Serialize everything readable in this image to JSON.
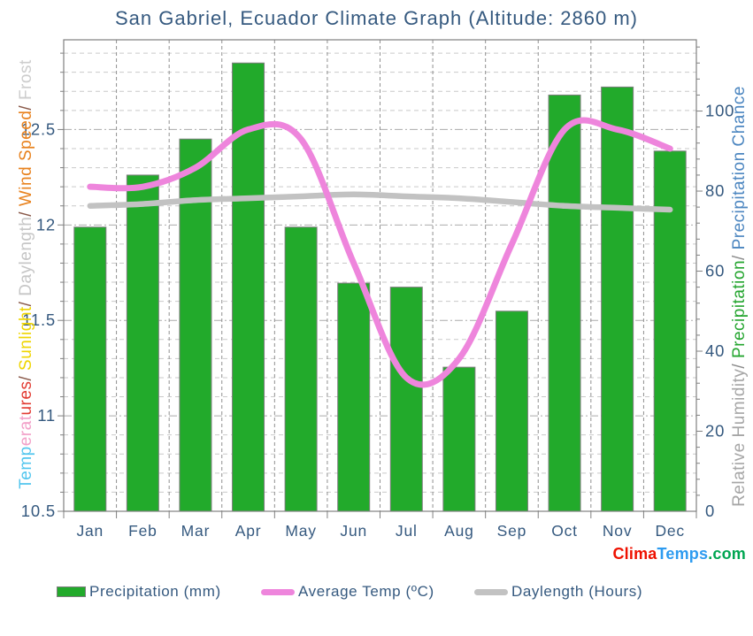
{
  "title": "San Gabriel, Ecuador Climate Graph (Altitude: 2860 m)",
  "logo": {
    "parts": [
      {
        "text": "Clima",
        "color": "#EE1100"
      },
      {
        "text": "Temps",
        "color": "#2D9BF0"
      },
      {
        "text": ".com",
        "color": "#00A651"
      }
    ]
  },
  "axis_titles": {
    "left": {
      "full_text": "Temperatures/ Sunlight/ Daylength/ Wind Speed/ Frost",
      "segments": [
        {
          "text": "Temp",
          "color": "#53C6EE"
        },
        {
          "text": "erat",
          "color": "#F2A0C8"
        },
        {
          "text": "ures",
          "color": "#E23B32"
        },
        {
          "text": "/ ",
          "color": "#8A5A4A"
        },
        {
          "text": "Sunlight",
          "color": "#EFD500"
        },
        {
          "text": "/ ",
          "color": "#8A5A4A"
        },
        {
          "text": "Daylength",
          "color": "#C6C6C6"
        },
        {
          "text": "/ ",
          "color": "#8A5A4A"
        },
        {
          "text": "Wind Speed",
          "color": "#E8821E"
        },
        {
          "text": "/ ",
          "color": "#8A5A4A"
        },
        {
          "text": "Frost",
          "color": "#CDCDCD"
        }
      ]
    },
    "right": {
      "full_text": "Relative Humidity/ Precipitation/ Precipitation Chance",
      "segments": [
        {
          "text": "Relative Humidity",
          "color": "#A6A6A6"
        },
        {
          "text": "/ ",
          "color": "#8C8C8C"
        },
        {
          "text": "Precipitation",
          "color": "#24A52F"
        },
        {
          "text": "/ ",
          "color": "#8C8C8C"
        },
        {
          "text": "Precipitation Chance",
          "color": "#4C86C0"
        }
      ]
    }
  },
  "legend": {
    "items": [
      {
        "label": "Precipitation (mm)",
        "swatch": "bar",
        "color": "#22AA2B"
      },
      {
        "label": "Average Temp (ºC)",
        "swatch": "line",
        "color": "#EE85DC"
      },
      {
        "label": "Daylength (Hours)",
        "swatch": "line",
        "color": "#C2C2C2"
      }
    ]
  },
  "chart_data": {
    "type": "bar",
    "title": "San Gabriel, Ecuador Climate Graph (Altitude: 2860 m)",
    "categories": [
      "Jan",
      "Feb",
      "Mar",
      "Apr",
      "May",
      "Jun",
      "Jul",
      "Aug",
      "Sep",
      "Oct",
      "Nov",
      "Dec"
    ],
    "series": [
      {
        "name": "Precipitation (mm)",
        "type": "bar",
        "axis": "right",
        "color": "#22AA2B",
        "values": [
          71,
          84,
          93,
          112,
          71,
          57,
          56,
          36,
          50,
          104,
          106,
          90
        ]
      },
      {
        "name": "Average Temp (ºC)",
        "type": "line",
        "axis": "left",
        "color": "#EE85DC",
        "values": [
          12.2,
          12.2,
          12.3,
          12.5,
          12.45,
          11.8,
          11.2,
          11.3,
          11.9,
          12.5,
          12.5,
          12.4
        ]
      },
      {
        "name": "Daylength (Hours)",
        "type": "line",
        "axis": "left",
        "color": "#C2C2C2",
        "values": [
          12.1,
          12.11,
          12.13,
          12.14,
          12.15,
          12.16,
          12.15,
          12.14,
          12.12,
          12.1,
          12.09,
          12.08
        ]
      }
    ],
    "left_axis": {
      "ticks": [
        10.5,
        11,
        11.5,
        12,
        12.5
      ],
      "range": [
        10.5,
        12.97
      ],
      "minor_step": 0.1
    },
    "right_axis": {
      "ticks": [
        0,
        20,
        40,
        60,
        80,
        100
      ],
      "range": [
        0,
        117.8
      ],
      "minor_step": 4
    },
    "grid": true,
    "legend_position": "bottom"
  },
  "colors": {
    "text": "#35597F",
    "grid_minor": "#C9C9C9",
    "grid_major": "#ABABAB",
    "grid_vertical": "#8F8F8F",
    "axis_border": "#808080",
    "bar_border": "#7D7D7D",
    "background": "#FFFFFF"
  }
}
